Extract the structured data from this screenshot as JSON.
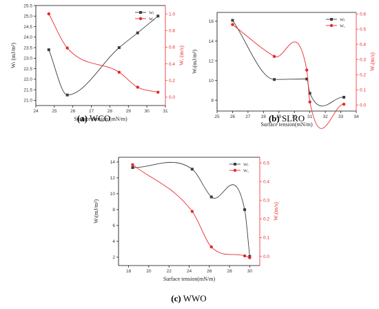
{
  "colors": {
    "series_wl": "#3d3d3d",
    "series_wv": "#e8272b",
    "axis": "#000000"
  },
  "chart_data": [
    {
      "id": "a",
      "type": "line",
      "caption_label": "(a)",
      "caption_text": " WCO",
      "xlabel": "Surface tension (mN/m)",
      "ylabel": "Wₗ (mJ/m²)",
      "y2label": "Wᵥ (m/s)",
      "xlim": [
        24,
        31
      ],
      "ylim": [
        20.75,
        25.5
      ],
      "y2lim": [
        -0.1,
        1.1
      ],
      "xticks": [
        24,
        25,
        26,
        27,
        28,
        29,
        30,
        31
      ],
      "yticks": [
        21.0,
        21.5,
        22.0,
        22.5,
        23.0,
        23.5,
        24.0,
        24.5,
        25.0,
        25.5
      ],
      "yticks_fmt": 1,
      "y2ticks": [
        0.0,
        0.2,
        0.4,
        0.6,
        0.8,
        1.0
      ],
      "y2ticks_fmt": 1,
      "legend_position": "top-right",
      "series": [
        {
          "name": "Wₗ",
          "axis": "left",
          "x": [
            24.7,
            25.7,
            28.5,
            29.5,
            30.6
          ],
          "y": [
            23.4,
            21.25,
            23.5,
            24.2,
            25.0
          ]
        },
        {
          "name": "Wᵥ",
          "axis": "right",
          "x": [
            24.7,
            25.7,
            28.5,
            29.5,
            30.6
          ],
          "y": [
            1.0,
            0.59,
            0.3,
            0.12,
            0.06
          ]
        }
      ]
    },
    {
      "id": "b",
      "type": "line",
      "caption_label": "(b)",
      "caption_text": " SLRO",
      "xlabel": "Surface tension(mN/m)",
      "ylabel": "Wₗ(mJ/m²)",
      "y2label": "Wᵥ(m/s)",
      "xlim": [
        25,
        34
      ],
      "ylim": [
        6.9,
        16.9
      ],
      "y2lim": [
        -0.04,
        0.61
      ],
      "xticks": [
        25,
        26,
        27,
        28,
        29,
        30,
        31,
        32,
        33,
        34
      ],
      "yticks": [
        8,
        10,
        12,
        14,
        16
      ],
      "yticks_fmt": 0,
      "y2ticks": [
        0.0,
        0.1,
        0.2,
        0.3,
        0.4,
        0.5,
        0.6
      ],
      "y2ticks_fmt": 1,
      "legend_position": "top-right",
      "series": [
        {
          "name": "Wₗ",
          "axis": "left",
          "x": [
            26.0,
            28.7,
            30.8,
            31.0,
            33.2
          ],
          "y": [
            16.1,
            10.1,
            10.15,
            8.7,
            8.3
          ]
        },
        {
          "name": "Wᵥ",
          "axis": "right",
          "x": [
            26.0,
            28.7,
            30.8,
            31.0,
            33.2
          ],
          "y": [
            0.53,
            0.32,
            0.23,
            0.02,
            0.005
          ]
        }
      ]
    },
    {
      "id": "c",
      "type": "line",
      "caption_label": "(c)",
      "caption_text": " WWO",
      "xlabel": "Surface tension(mN/m)",
      "ylabel": "Wₗ(mJ/m²)",
      "y2label": "Wᵥ(m/s)",
      "xlim": [
        17,
        31
      ],
      "ylim": [
        0.95,
        14.6
      ],
      "y2lim": [
        -0.05,
        0.53
      ],
      "xticks": [
        18,
        20,
        22,
        24,
        26,
        28,
        30
      ],
      "yticks": [
        2,
        4,
        6,
        8,
        10,
        12,
        14
      ],
      "yticks_fmt": 0,
      "y2ticks": [
        0.0,
        0.1,
        0.2,
        0.3,
        0.4,
        0.5
      ],
      "y2ticks_fmt": 1,
      "legend_position": "top-right",
      "series": [
        {
          "name": "Wₗ",
          "axis": "left",
          "x": [
            18.4,
            24.3,
            26.2,
            29.5,
            30.0
          ],
          "y": [
            13.3,
            13.1,
            9.6,
            8.0,
            2.1
          ]
        },
        {
          "name": "Wᵥ",
          "axis": "right",
          "x": [
            18.4,
            24.3,
            26.2,
            29.5,
            30.0
          ],
          "y": [
            0.49,
            0.24,
            0.05,
            0.002,
            -0.008
          ]
        }
      ]
    }
  ]
}
